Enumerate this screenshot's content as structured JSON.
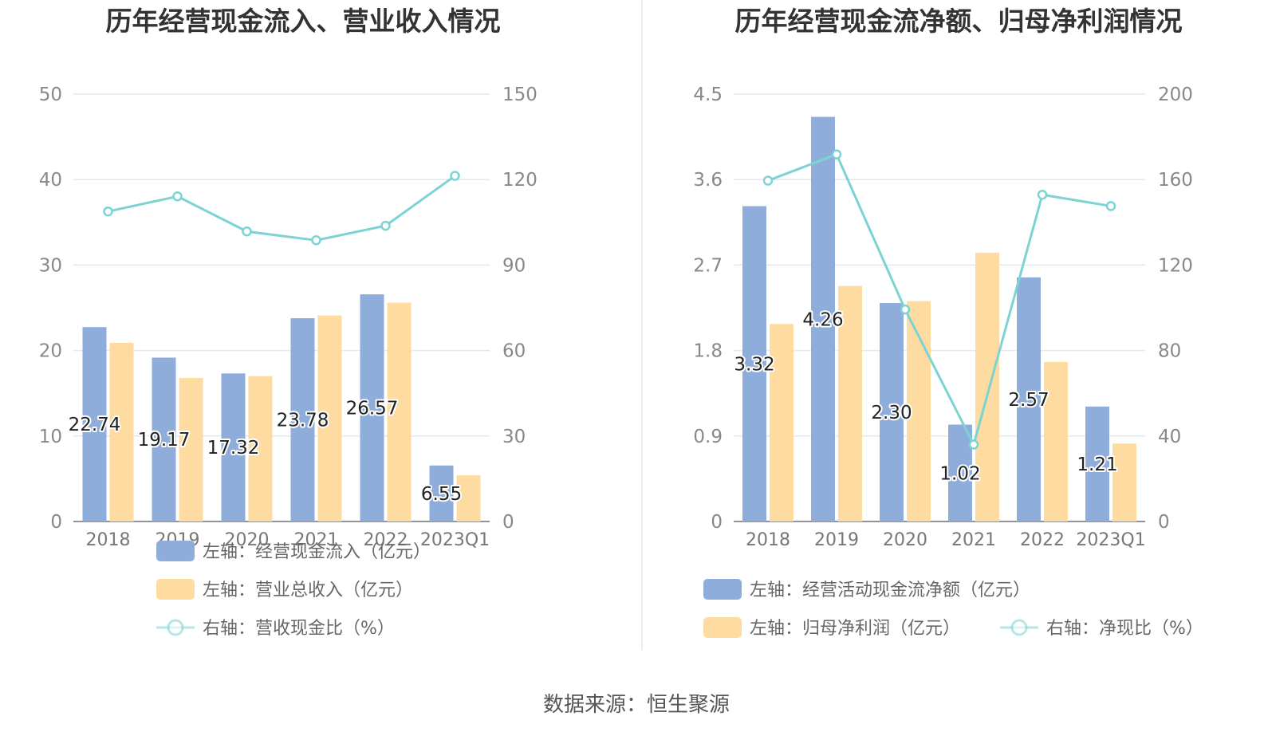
{
  "source_label": "数据来源：恒生聚源",
  "chart_data": [
    {
      "type": "bar",
      "title": "历年经营现金流入、营业收入情况",
      "categories": [
        "2018",
        "2019",
        "2020",
        "2021",
        "2022",
        "2023Q1"
      ],
      "left_axis": {
        "min": 0,
        "max": 50,
        "ticks": [
          "0",
          "10",
          "20",
          "30",
          "40",
          "50"
        ]
      },
      "right_axis": {
        "min": 0,
        "max": 150,
        "ticks": [
          "0",
          "30",
          "60",
          "90",
          "120",
          "150"
        ]
      },
      "series": [
        {
          "name": "左轴：经营现金流入（亿元）",
          "kind": "bar",
          "axis": "left",
          "color": "#8fadda",
          "values": [
            22.74,
            19.17,
            17.32,
            23.78,
            26.57,
            6.55
          ],
          "labels": [
            "22.74",
            "19.17",
            "17.32",
            "23.78",
            "26.57",
            "6.55"
          ]
        },
        {
          "name": "左轴：营业总收入（亿元）",
          "kind": "bar",
          "axis": "left",
          "color": "#fedba0",
          "values": [
            20.9,
            16.8,
            17.0,
            24.1,
            25.6,
            5.4
          ]
        },
        {
          "name": "右轴：营收现金比（%）",
          "kind": "line",
          "axis": "right",
          "color": "#7dd3d3",
          "values": [
            108.8,
            114.1,
            101.8,
            98.7,
            103.8,
            121.3
          ]
        }
      ],
      "grid": true,
      "legend_position": "bottom"
    },
    {
      "type": "bar",
      "title": "历年经营现金流净额、归母净利润情况",
      "categories": [
        "2018",
        "2019",
        "2020",
        "2021",
        "2022",
        "2023Q1"
      ],
      "left_axis": {
        "min": 0,
        "max": 4.5,
        "ticks": [
          "0",
          "0.9",
          "1.8",
          "2.7",
          "3.6",
          "4.5"
        ]
      },
      "right_axis": {
        "min": 0,
        "max": 200,
        "ticks": [
          "0",
          "40",
          "80",
          "120",
          "160",
          "200"
        ]
      },
      "series": [
        {
          "name": "左轴：经营活动现金流净额（亿元）",
          "kind": "bar",
          "axis": "left",
          "color": "#8fadda",
          "values": [
            3.32,
            4.26,
            2.3,
            1.02,
            2.57,
            1.21
          ],
          "labels": [
            "3.32",
            "4.26",
            "2.30",
            "1.02",
            "2.57",
            "1.21"
          ]
        },
        {
          "name": "左轴：归母净利润（亿元）",
          "kind": "bar",
          "axis": "left",
          "color": "#fedba0",
          "values": [
            2.08,
            2.48,
            2.32,
            2.83,
            1.68,
            0.82
          ]
        },
        {
          "name": "右轴：净现比（%）",
          "kind": "line",
          "axis": "right",
          "color": "#7dd3d3",
          "values": [
            159.5,
            171.8,
            99.2,
            36.0,
            152.9,
            147.6
          ]
        }
      ],
      "grid": true,
      "legend_position": "bottom"
    }
  ]
}
